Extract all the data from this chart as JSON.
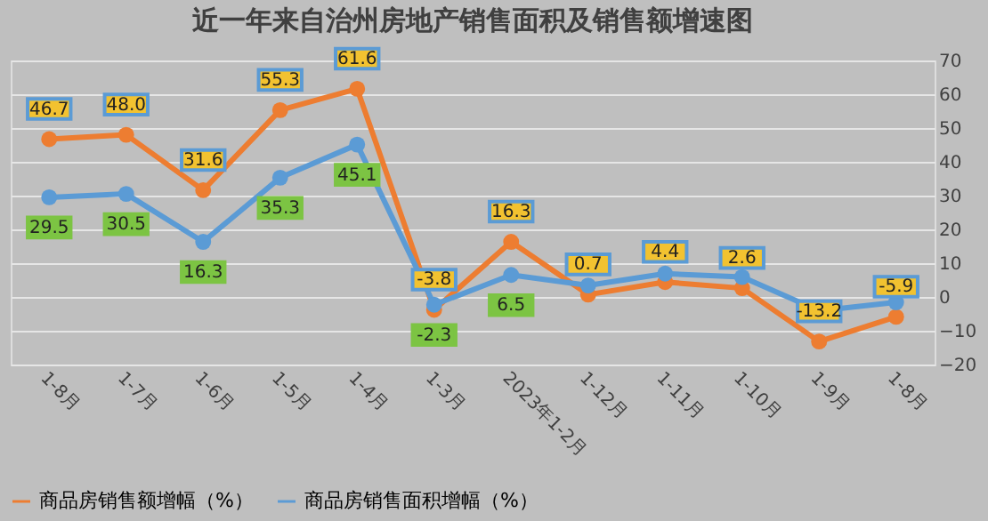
{
  "chart_data": {
    "type": "line",
    "title": "近一年来自治州房地产销售面积及销售额增速图",
    "categories": [
      "1-8月",
      "1-7月",
      "1-6月",
      "1-5月",
      "1-4月",
      "1-3月",
      "2023年1-2月",
      "1-12月",
      "1-11月",
      "1-10月",
      "1-9月",
      "1-8月"
    ],
    "series": [
      {
        "name": "商品房销售额增幅（%）",
        "color": "#ed7d31",
        "values": [
          46.7,
          48.0,
          31.6,
          55.3,
          61.6,
          -3.8,
          16.3,
          0.7,
          4.4,
          2.6,
          -13.2,
          -5.9
        ],
        "value_labels": [
          "46.7",
          "48.0",
          "31.6",
          "55.3",
          "61.6",
          "-3.8",
          "16.3",
          "0.7",
          "4.4",
          "2.6",
          "-13.2",
          "-5.9"
        ]
      },
      {
        "name": "商品房销售面积增幅（%）",
        "color": "#5b9bd5",
        "values": [
          29.5,
          30.5,
          16.3,
          35.3,
          45.1,
          -2.3,
          6.5,
          3.4,
          6.9,
          5.9,
          -4.1,
          -1.6
        ],
        "value_labels": [
          "29.5",
          "30.5",
          "16.3",
          "35.3",
          "45.1",
          "-2.3",
          "6.5",
          null,
          null,
          null,
          null,
          null
        ]
      }
    ],
    "ylim": [
      -20,
      70
    ],
    "yticks": [
      -20,
      -10,
      0,
      10,
      20,
      30,
      40,
      50,
      60,
      70
    ],
    "grid": "y",
    "legend": "bottom",
    "marker": "circle",
    "line_style": "solid"
  }
}
